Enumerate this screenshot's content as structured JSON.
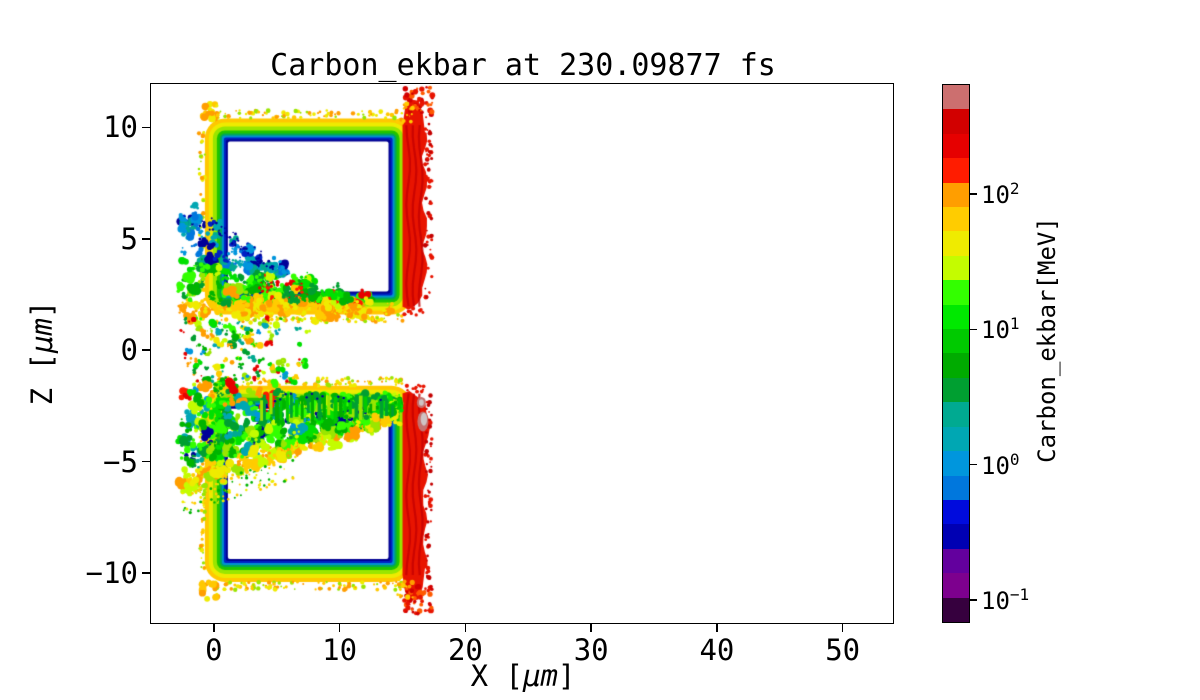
{
  "figure": {
    "background": "#ffffff"
  },
  "chart_data": {
    "type": "heatmap",
    "title": "Carbon_ekbar at 230.09877 fs",
    "time_fs": 230.09877,
    "xlabel": {
      "prefix": "X [",
      "mu": "μm",
      "suffix": "]"
    },
    "ylabel": {
      "prefix": "Z [",
      "mu": "μm",
      "suffix": "]"
    },
    "xlim": [
      -5,
      54
    ],
    "ylim": [
      -12.25,
      11.95
    ],
    "xticks": [
      {
        "label": "0",
        "value": 0
      },
      {
        "label": "10",
        "value": 10
      },
      {
        "label": "20",
        "value": 20
      },
      {
        "label": "30",
        "value": 30
      },
      {
        "label": "40",
        "value": 40
      },
      {
        "label": "50",
        "value": 50
      }
    ],
    "yticks": [
      {
        "label": "10",
        "value": 10
      },
      {
        "label": "5",
        "value": 5
      },
      {
        "label": "0",
        "value": 0
      },
      {
        "label": "−5",
        "value": -5
      },
      {
        "label": "−10",
        "value": -10
      }
    ],
    "colorbar": {
      "label": "Carbon_ekbar[MeV]",
      "scale": "log",
      "vmin": 0.07,
      "vmax": 650,
      "colormap": "nipy_spectral (22 discrete levels)",
      "ticks": [
        {
          "base": "10",
          "exp": "2",
          "value": 100
        },
        {
          "base": "10",
          "exp": "1",
          "value": 10
        },
        {
          "base": "10",
          "exp": "0",
          "value": 1
        },
        {
          "base": "10",
          "exp": "−1",
          "value": 0.1
        }
      ],
      "levels_bottom_to_top": [
        "#36003e",
        "#7d008e",
        "#63009e",
        "#0000b3",
        "#000bdd",
        "#0077dd",
        "#0096dd",
        "#00a7b3",
        "#00aa91",
        "#009f31",
        "#00ab00",
        "#00ca00",
        "#00e900",
        "#33ff00",
        "#c4fc00",
        "#efeb00",
        "#ffcc00",
        "#ff9e00",
        "#ff1c00",
        "#e60000",
        "#d20000",
        "#cc6f6f"
      ]
    },
    "targets": [
      {
        "name": "upper-target-block",
        "x": [
          0,
          15
        ],
        "z": [
          2,
          10
        ],
        "interior": "empty (white)"
      },
      {
        "name": "lower-target-block",
        "x": [
          0,
          15
        ],
        "z": [
          -10,
          -2
        ],
        "interior": "empty (white)"
      }
    ],
    "shell_layers": [
      {
        "offset": 9,
        "color": "#ffc800"
      },
      {
        "offset": 5,
        "color": "#efeb00"
      },
      {
        "offset": 1,
        "color": "#9ae600"
      },
      {
        "offset": -3,
        "color": "#1fc400"
      },
      {
        "offset": -6,
        "color": "#00a75a"
      },
      {
        "offset": -8,
        "color": "#0090d0"
      },
      {
        "offset": -10,
        "color": "#0022c4"
      },
      {
        "offset": -12,
        "color": "#000092"
      },
      {
        "offset": -14,
        "color": "#ffffff"
      }
    ],
    "rear_sheath": {
      "x": [
        15,
        17.0
      ],
      "flare_um": 1.2,
      "color": "#e81400",
      "dark": "#c40000",
      "note": "hot rear surface >100 MeV, red, z = ±2 to ±11.3"
    },
    "max_energy_spot": {
      "x": [
        15.9,
        17.2
      ],
      "z": [
        -3.9,
        -2.1
      ],
      "outer": "#c4716f",
      "inner": "#cfc4c4",
      "note": "highest energy ~500 MeV (gray)"
    },
    "plumes": {
      "upper": {
        "x": [
          -2.6,
          12.4
        ],
        "z": [
          1.45,
          6.6
        ],
        "note": "turbulent green/cyan wedge, warm lower edge"
      },
      "mid": {
        "x": [
          -2.5,
          8.2
        ],
        "z": [
          -1.45,
          1.45
        ],
        "note": "scattered green/yellow/orange/red debris"
      },
      "lower": {
        "x": [
          -2.6,
          14.7
        ],
        "z": [
          -6.5,
          -1.6
        ],
        "note": "turbulent green band with comb striations"
      }
    },
    "plume_palette": {
      "green": [
        "#00e000",
        "#00b400",
        "#009f31",
        "#33ff00"
      ],
      "yellowgreen": [
        "#9ae600",
        "#c4fc00"
      ],
      "cyan": [
        "#00a7b3",
        "#00aa91",
        "#0096dd"
      ],
      "blue": [
        "#0077dd",
        "#0022c4"
      ],
      "navy": [
        "#000099"
      ],
      "warm": [
        "#efeb00",
        "#ffcc00",
        "#ff9e00"
      ],
      "hot": [
        "#ff1c00",
        "#e60000"
      ]
    }
  }
}
